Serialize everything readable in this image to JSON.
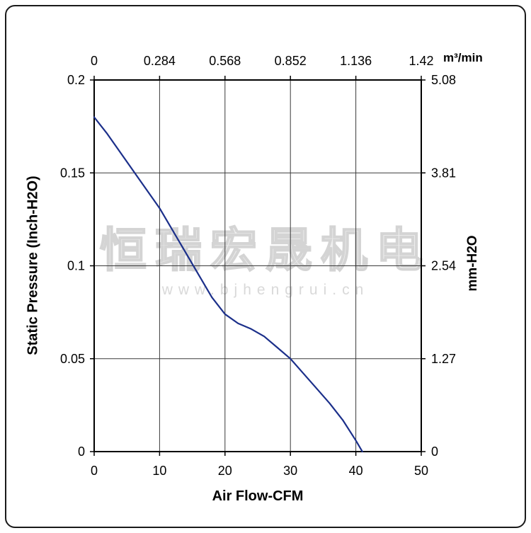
{
  "watermark": {
    "line1": "恒瑞宏晟机电",
    "line2": "www.bjhengrui.cn"
  },
  "chart_data": {
    "type": "line",
    "grid": true,
    "x_bottom": {
      "label": "Air Flow-CFM",
      "range": [
        0,
        50
      ],
      "ticks": [
        {
          "v": 0,
          "t": "0"
        },
        {
          "v": 10,
          "t": "10"
        },
        {
          "v": 20,
          "t": "20"
        },
        {
          "v": 30,
          "t": "30"
        },
        {
          "v": 40,
          "t": "40"
        },
        {
          "v": 50,
          "t": "50"
        }
      ]
    },
    "x_top": {
      "label": "m³/min",
      "range": [
        0,
        1.42
      ],
      "ticks": [
        {
          "v": 0,
          "t": "0"
        },
        {
          "v": 0.284,
          "t": "0.284"
        },
        {
          "v": 0.568,
          "t": "0.568"
        },
        {
          "v": 0.852,
          "t": "0.852"
        },
        {
          "v": 1.136,
          "t": "1.136"
        },
        {
          "v": 1.42,
          "t": "1.42"
        }
      ]
    },
    "y_left": {
      "label": "Static Pressure (Inch-H2O)",
      "range": [
        0,
        0.2
      ],
      "ticks": [
        {
          "v": 0,
          "t": "0"
        },
        {
          "v": 0.05,
          "t": "0.05"
        },
        {
          "v": 0.1,
          "t": "0.1"
        },
        {
          "v": 0.15,
          "t": "0.15"
        },
        {
          "v": 0.2,
          "t": "0.2"
        }
      ]
    },
    "y_right": {
      "label": "mm-H2O",
      "range": [
        0,
        5.08
      ],
      "ticks": [
        {
          "v": 0,
          "t": "0"
        },
        {
          "v": 1.27,
          "t": "1.27"
        },
        {
          "v": 2.54,
          "t": "2.54"
        },
        {
          "v": 3.81,
          "t": "3.81"
        },
        {
          "v": 5.08,
          "t": "5.08"
        }
      ]
    },
    "series": [
      {
        "name": "static-pressure-curve",
        "color": "#1b2f8a",
        "points": [
          [
            0,
            0.18
          ],
          [
            2,
            0.171
          ],
          [
            5,
            0.156
          ],
          [
            8,
            0.141
          ],
          [
            10,
            0.131
          ],
          [
            12,
            0.119
          ],
          [
            14,
            0.107
          ],
          [
            16,
            0.095
          ],
          [
            18,
            0.083
          ],
          [
            20,
            0.074
          ],
          [
            22,
            0.069
          ],
          [
            24,
            0.066
          ],
          [
            26,
            0.062
          ],
          [
            28,
            0.056
          ],
          [
            30,
            0.05
          ],
          [
            32,
            0.042
          ],
          [
            34,
            0.034
          ],
          [
            36,
            0.026
          ],
          [
            38,
            0.017
          ],
          [
            40,
            0.006
          ],
          [
            41,
            0
          ]
        ]
      }
    ]
  }
}
